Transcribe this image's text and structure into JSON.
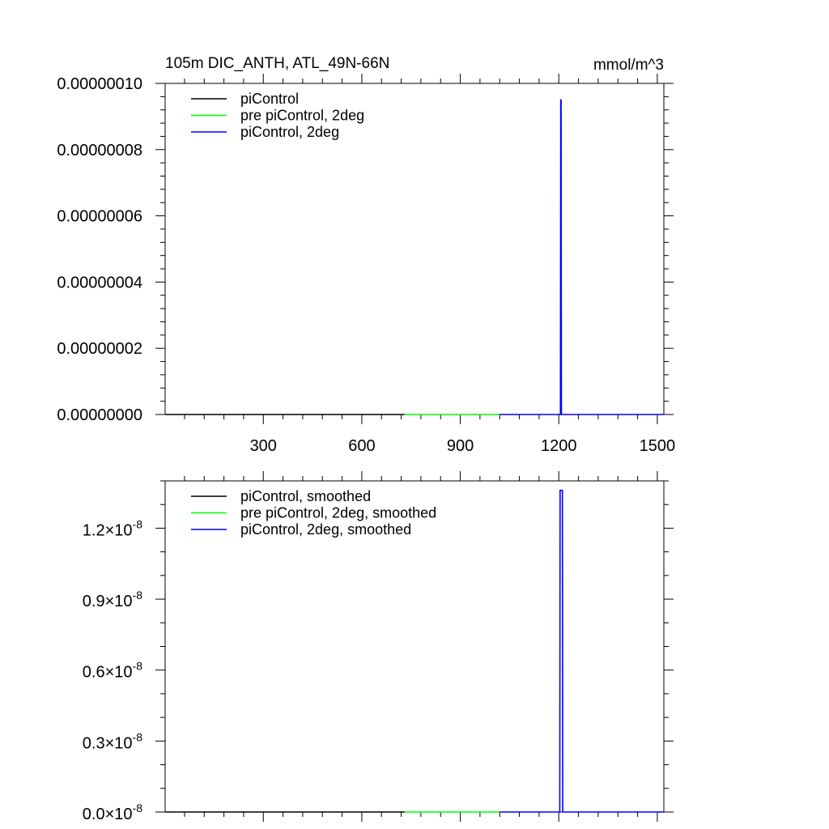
{
  "figure": {
    "title_left": "105m DIC_ANTH, ATL_49N-66N",
    "title_right": "mmol/m^3"
  },
  "chart_data": [
    {
      "type": "line",
      "title": "105m DIC_ANTH, ATL_49N-66N",
      "units_label": "mmol/m^3",
      "xlim": [
        1,
        1520
      ],
      "ylim": [
        0,
        1e-07
      ],
      "x_ticks": [
        300,
        600,
        900,
        1200,
        1500
      ],
      "x_tick_labels": [
        "300",
        "600",
        "900",
        "1200",
        "1500"
      ],
      "y_ticks": [
        0,
        2e-08,
        4e-08,
        6e-08,
        8e-08,
        1e-07
      ],
      "y_tick_labels": [
        "0.00000000",
        "0.00000002",
        "0.00000004",
        "0.00000006",
        "0.00000008",
        "0.00000010"
      ],
      "legend_position": "top-left",
      "grid": false,
      "series": [
        {
          "name": "piControl",
          "color": "#000000",
          "x": [
            1,
            730
          ],
          "y": [
            0,
            0
          ]
        },
        {
          "name": "pre piControl, 2deg",
          "color": "#00ff00",
          "x": [
            730,
            1020
          ],
          "y": [
            0,
            0
          ]
        },
        {
          "name": "piControl, 2deg",
          "color": "#0000ff",
          "x": [
            1020,
            1205,
            1206,
            1207,
            1208,
            1520
          ],
          "y": [
            0,
            0,
            9.5e-08,
            9.5e-08,
            0,
            0
          ]
        }
      ]
    },
    {
      "type": "line",
      "xlim": [
        1,
        1520
      ],
      "ylim": [
        0,
        1.4e-08
      ],
      "x_ticks": [
        300,
        600,
        900,
        1200,
        1500
      ],
      "x_tick_labels": [
        "",
        "",
        "",
        "",
        ""
      ],
      "y_ticks": [
        0,
        3e-09,
        6e-09,
        9e-09,
        1.2e-08
      ],
      "y_tick_labels": [
        {
          "mant": "0.0",
          "exp": "-8"
        },
        {
          "mant": "0.3",
          "exp": "-8"
        },
        {
          "mant": "0.6",
          "exp": "-8"
        },
        {
          "mant": "0.9",
          "exp": "-8"
        },
        {
          "mant": "1.2",
          "exp": "-8"
        }
      ],
      "legend_position": "top-left",
      "grid": false,
      "series": [
        {
          "name": "piControl, smoothed",
          "color": "#000000",
          "x": [
            1,
            730
          ],
          "y": [
            0,
            0
          ]
        },
        {
          "name": "pre piControl, 2deg, smoothed",
          "color": "#00ff00",
          "x": [
            730,
            1020
          ],
          "y": [
            0,
            0
          ]
        },
        {
          "name": "piControl, 2deg, smoothed",
          "color": "#0000ff",
          "x": [
            1020,
            1203,
            1204,
            1211,
            1212,
            1520
          ],
          "y": [
            0,
            0,
            1.36e-08,
            1.36e-08,
            0,
            0
          ]
        }
      ]
    }
  ]
}
